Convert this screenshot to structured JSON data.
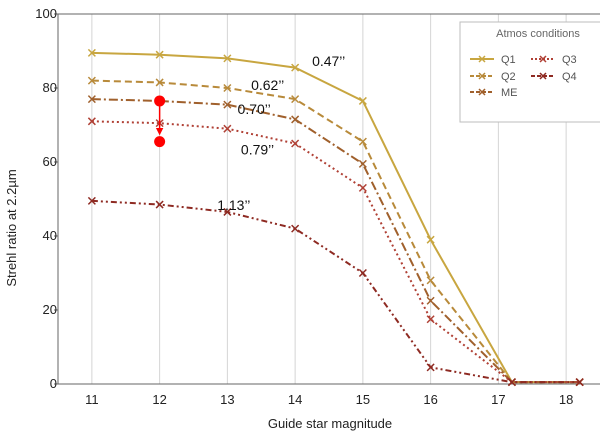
{
  "chart_data": {
    "type": "line",
    "xlabel": "Guide star magnitude",
    "ylabel": "Strehl ratio at 2.2µm",
    "xlim": [
      10.5,
      18.5
    ],
    "ylim": [
      0,
      100
    ],
    "x_ticks": [
      11,
      12,
      13,
      14,
      15,
      16,
      17,
      18
    ],
    "y_ticks": [
      0,
      20,
      40,
      60,
      80,
      100
    ],
    "grid": "vertical",
    "legend": {
      "title": "Atmos conditions",
      "placement": "top-right"
    },
    "x": [
      11,
      12,
      13,
      14,
      15,
      16,
      17.2,
      18.2
    ],
    "series": [
      {
        "name": "Q1",
        "color": "#c8a640",
        "dash": "solid",
        "values": [
          89.5,
          89,
          88,
          85.5,
          76.5,
          39,
          0.5,
          0.5
        ]
      },
      {
        "name": "Q2",
        "color": "#b88a3a",
        "dash": "dash",
        "values": [
          82,
          81.5,
          80,
          77,
          65.5,
          28,
          0.5,
          0.5
        ]
      },
      {
        "name": "ME",
        "color": "#a0602c",
        "dash": "dashdot",
        "values": [
          77,
          76.5,
          75.5,
          71.5,
          59.5,
          22.5,
          0.5,
          0.5
        ]
      },
      {
        "name": "Q3",
        "color": "#b04035",
        "dash": "dot",
        "values": [
          71,
          70.5,
          69,
          65,
          53,
          17.5,
          0.5,
          0.5
        ]
      },
      {
        "name": "Q4",
        "color": "#8e2a22",
        "dash": "dashdotdot",
        "values": [
          49.5,
          48.5,
          46.5,
          42,
          30,
          4.5,
          0.5,
          0.5
        ]
      }
    ],
    "annotations": [
      {
        "text": "0.47’’",
        "x": 14.25,
        "y": 86
      },
      {
        "text": "0.62’’",
        "x": 13.35,
        "y": 79.5
      },
      {
        "text": "0.70’’",
        "x": 13.15,
        "y": 73
      },
      {
        "text": "0.79’’",
        "x": 13.2,
        "y": 62
      },
      {
        "text": "1.13’’",
        "x": 12.85,
        "y": 47
      }
    ],
    "marker_arrow": {
      "color": "#ff0000",
      "from": [
        12,
        76.5
      ],
      "to": [
        12,
        65.5
      ]
    }
  }
}
